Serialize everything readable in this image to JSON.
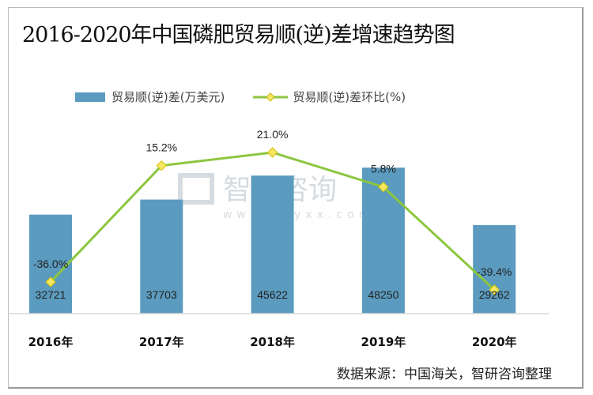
{
  "chart_data": {
    "type": "bar+line",
    "title": "2016-2020年中国磷肥贸易顺(逆)差增速趋势图",
    "categories": [
      "2016年",
      "2017年",
      "2018年",
      "2019年",
      "2020年"
    ],
    "series": [
      {
        "name": "贸易顺(逆)差(万美元)",
        "type": "bar",
        "values": [
          32721,
          37703,
          45622,
          48250,
          29262
        ],
        "labels": [
          "32721",
          "37703",
          "45622",
          "48250",
          "29262"
        ],
        "color": "#5b9bbf"
      },
      {
        "name": "贸易顺(逆)差环比(%)",
        "type": "line",
        "values": [
          -36.0,
          15.2,
          21.0,
          5.8,
          -39.4
        ],
        "labels": [
          "-36.0%",
          "15.2%",
          "21.0%",
          "5.8%",
          "-39.4%"
        ],
        "color": "#8cc63f",
        "marker_color": "#f5e663"
      }
    ],
    "legend": "top",
    "grid": false
  },
  "source": "数据来源：中国海关，智研咨询整理",
  "watermark": {
    "brand": "智研咨询",
    "url": "www.chyxx.com"
  }
}
